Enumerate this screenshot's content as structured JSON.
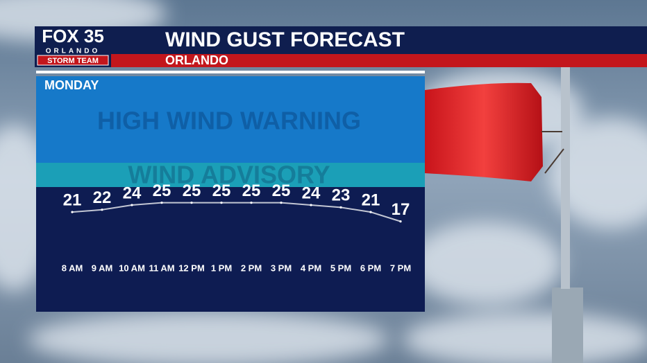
{
  "brand": {
    "name": "FOX 35",
    "city": "ORLANDO",
    "team": "STORM TEAM"
  },
  "chart_data": {
    "type": "line",
    "title": "WIND GUST FORECAST",
    "subtitle": "ORLANDO",
    "day": "MONDAY",
    "zones": [
      "HIGH WIND WARNING",
      "WIND ADVISORY"
    ],
    "categories": [
      "8 AM",
      "9 AM",
      "10 AM",
      "11 AM",
      "12 PM",
      "1 PM",
      "2 PM",
      "3 PM",
      "4 PM",
      "5 PM",
      "6 PM",
      "7 PM"
    ],
    "values": [
      21,
      22,
      24,
      25,
      25,
      25,
      25,
      25,
      24,
      23,
      21,
      17
    ],
    "color": "#ffffff"
  }
}
